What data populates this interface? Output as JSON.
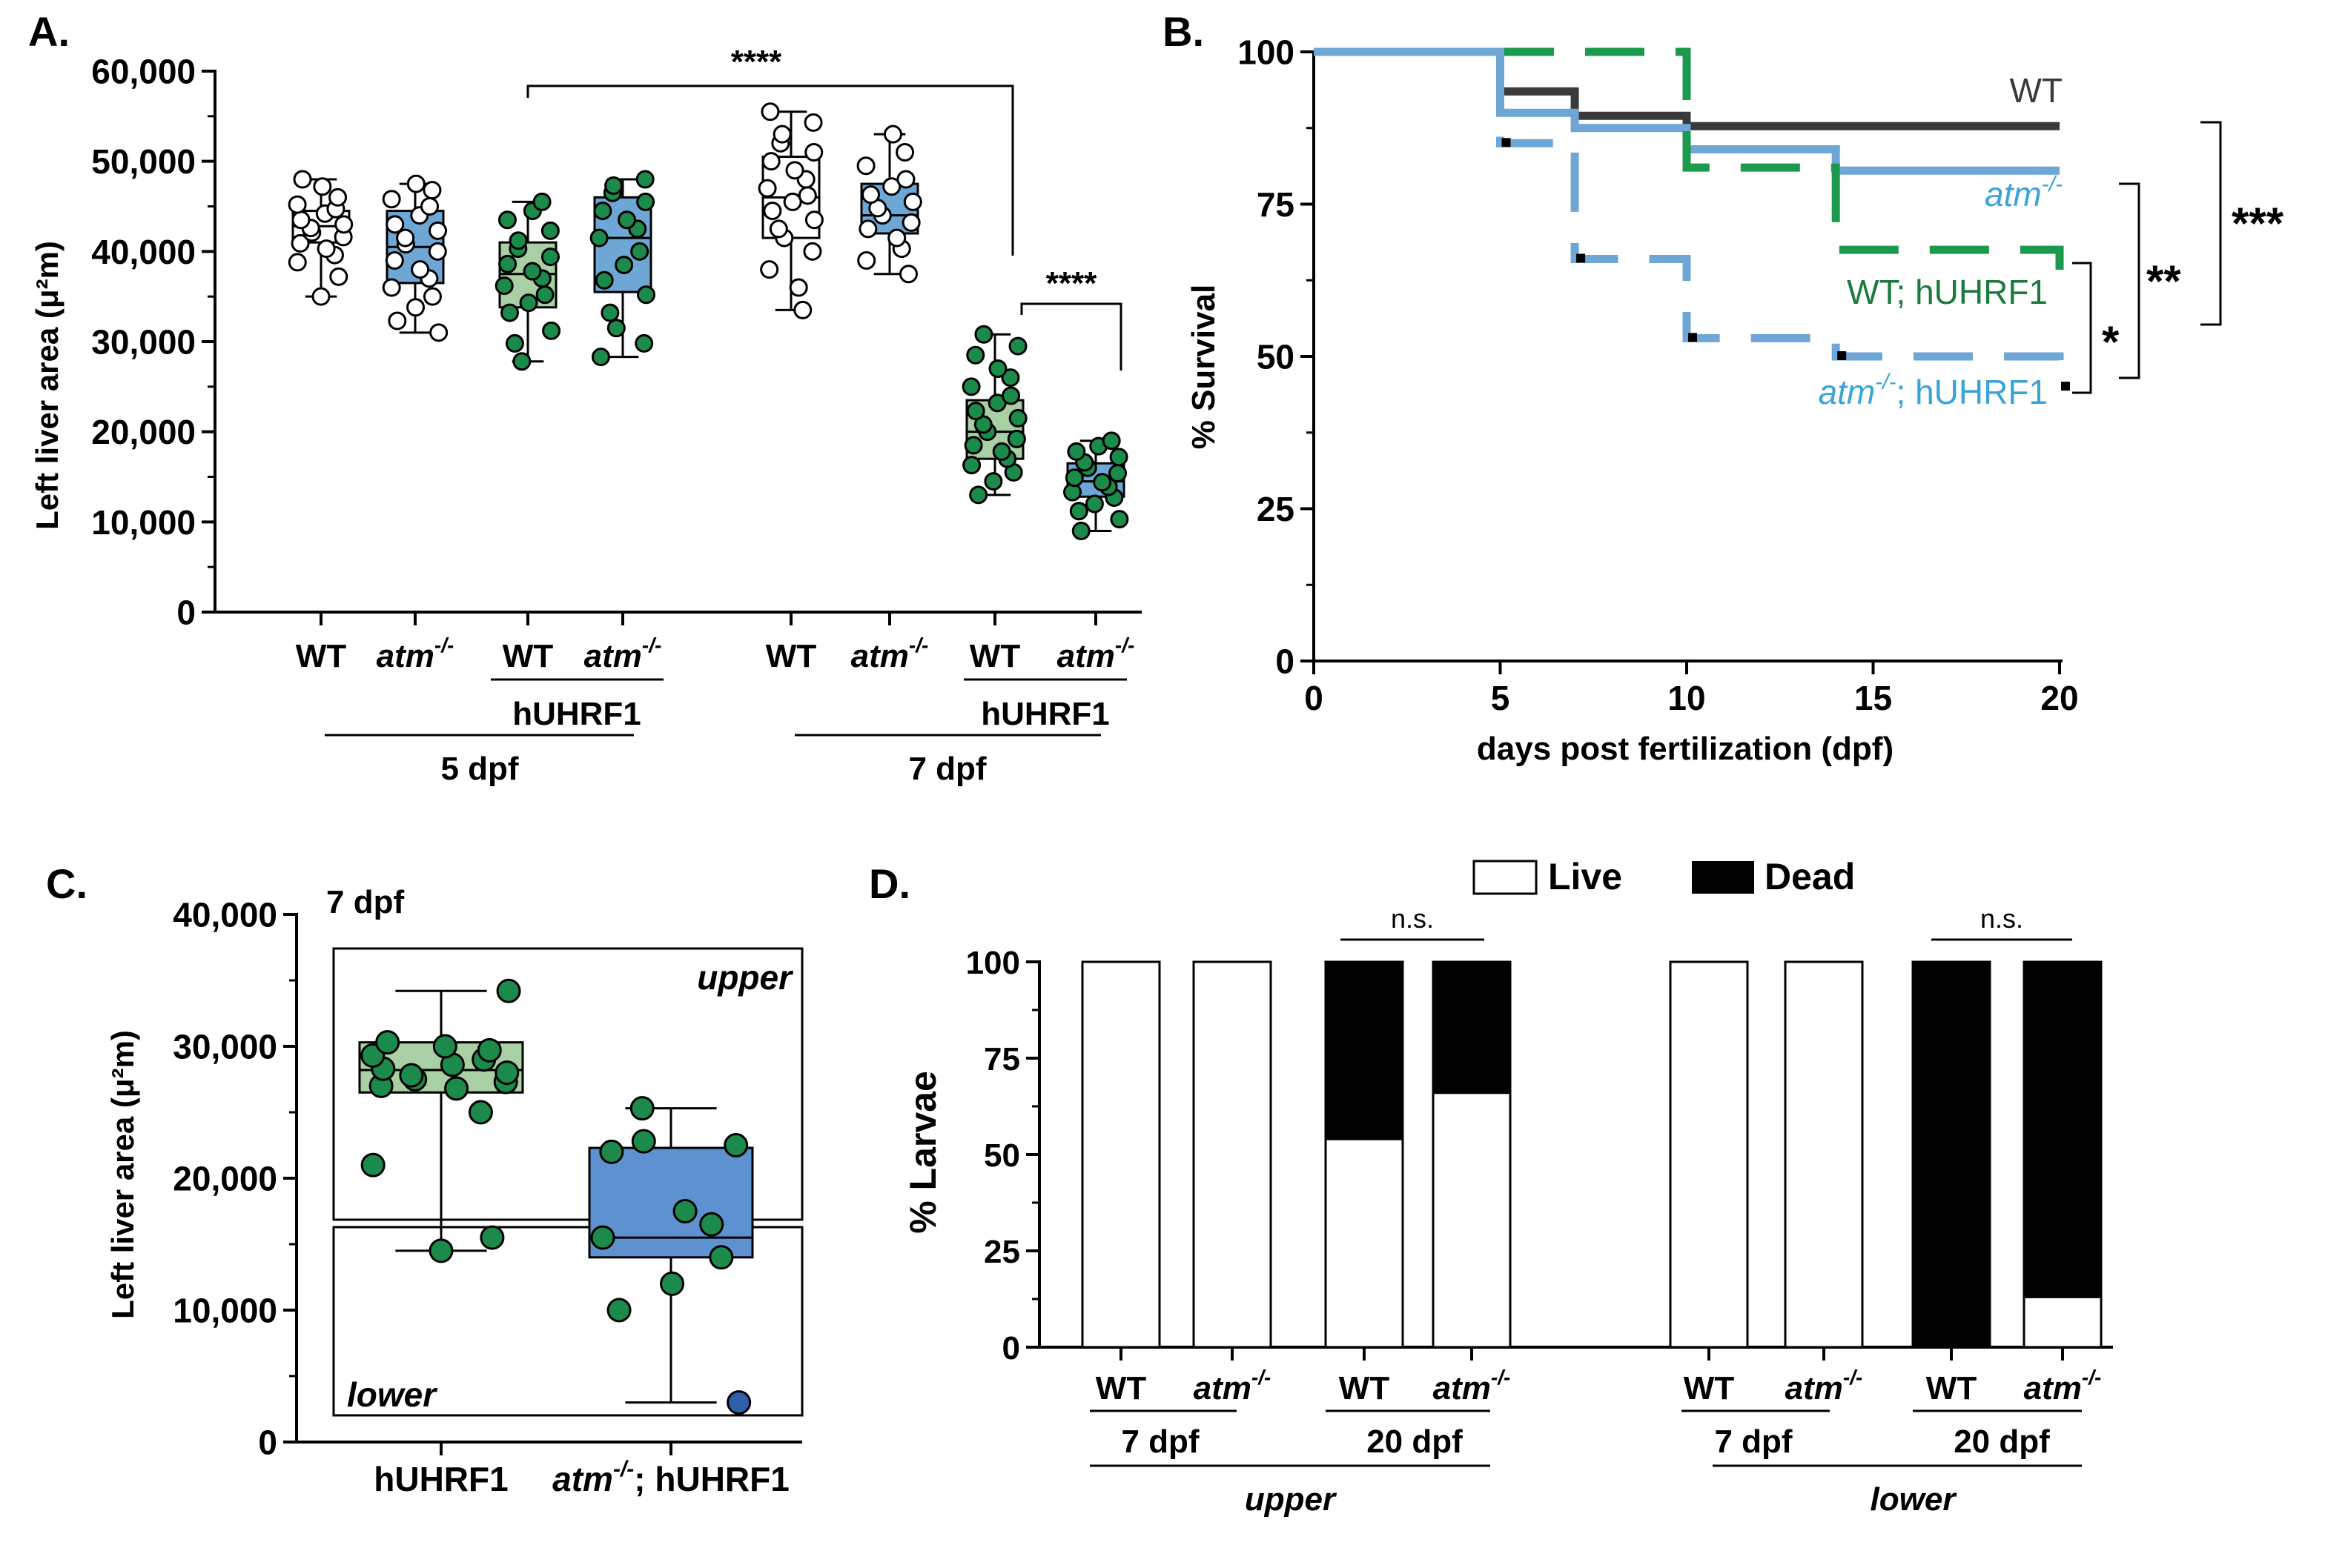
{
  "panels": {
    "a": "A.",
    "b": "B.",
    "c": "C.",
    "d": "D."
  },
  "colors": {
    "green": "#1b8a4a",
    "green_light": "#a9cfa4",
    "blue": "#6ea7d6",
    "blue_fill": "#5e91cf",
    "dark": "#3a3a3a",
    "blue_text": "#3aa3d8",
    "green_text": "#1b7a3e"
  },
  "chart_data": [
    {
      "panel": "A",
      "type": "box",
      "ylabel": "Left liver area (μ²m)",
      "ylim": [
        0,
        60000
      ],
      "ytick_labels": [
        "0",
        "10,000",
        "20,000",
        "30,000",
        "40,000",
        "50,000",
        "60,000"
      ],
      "ytick_values": [
        0,
        10000,
        20000,
        30000,
        40000,
        50000,
        60000
      ],
      "category_labels": [
        "WT",
        "atm",
        "WT",
        "atm",
        "WT",
        "atm",
        "WT",
        "atm"
      ],
      "superscript": "-/-",
      "group_labels": [
        "hUHRF1",
        "5 dpf",
        "hUHRF1",
        "7 dpf"
      ],
      "sig_labels": [
        "****",
        "****"
      ],
      "boxes": [
        {
          "min": 35000,
          "q1": 41000,
          "median": 42800,
          "q3": 44500,
          "max": 48000,
          "points": [
            35000,
            37200,
            38800,
            39600,
            40300,
            40900,
            41600,
            42100,
            42600,
            43000,
            43500,
            44200,
            44700,
            45200,
            46000,
            47200,
            48000
          ]
        },
        {
          "min": 31000,
          "q1": 36500,
          "median": 40500,
          "q3": 44500,
          "max": 47500,
          "points": [
            31000,
            32300,
            33800,
            35000,
            36000,
            37000,
            38000,
            39000,
            40000,
            40800,
            41500,
            42300,
            43000,
            44000,
            45000,
            45800,
            46800,
            47500
          ]
        },
        {
          "min": 27800,
          "q1": 33800,
          "median": 37500,
          "q3": 41000,
          "max": 45500,
          "points": [
            27800,
            29800,
            31200,
            33200,
            34300,
            35200,
            36200,
            37000,
            37800,
            38600,
            39400,
            40300,
            41200,
            42300,
            43500,
            44500,
            45500
          ]
        },
        {
          "min": 28300,
          "q1": 35500,
          "median": 41500,
          "q3": 46000,
          "max": 48000,
          "points": [
            28300,
            29800,
            31500,
            33200,
            35200,
            36800,
            38500,
            40000,
            41500,
            42500,
            43500,
            44500,
            45500,
            46500,
            47300,
            48000
          ]
        },
        {
          "min": 33500,
          "q1": 41500,
          "median": 46000,
          "q3": 50500,
          "max": 55500,
          "points": [
            33500,
            36000,
            38000,
            40000,
            41500,
            42500,
            43500,
            44500,
            45500,
            46200,
            47000,
            48000,
            49000,
            50000,
            51000,
            52000,
            53000,
            54300,
            55500
          ]
        },
        {
          "min": 37500,
          "q1": 42000,
          "median": 44000,
          "q3": 47500,
          "max": 53000,
          "points": [
            37500,
            39000,
            40300,
            41500,
            42500,
            43200,
            44000,
            44800,
            45500,
            46300,
            47200,
            48000,
            49500,
            51000,
            53000
          ]
        },
        {
          "min": 13000,
          "q1": 17000,
          "median": 20000,
          "q3": 23500,
          "max": 30800,
          "points": [
            13000,
            14500,
            15500,
            16300,
            17000,
            17800,
            18500,
            19200,
            20000,
            20800,
            21500,
            22300,
            23200,
            24000,
            25000,
            26000,
            27000,
            28500,
            29500,
            30800
          ]
        },
        {
          "min": 9000,
          "q1": 12800,
          "median": 14500,
          "q3": 16500,
          "max": 19000,
          "points": [
            9000,
            10300,
            11200,
            12000,
            12700,
            13300,
            13900,
            14400,
            14900,
            15400,
            16000,
            16600,
            17200,
            17800,
            18400,
            19000
          ]
        }
      ]
    },
    {
      "panel": "B",
      "type": "line",
      "ylabel": "% Survival",
      "xlabel": "days post fertilization (dpf)",
      "xlim": [
        0,
        20
      ],
      "ylim": [
        0,
        100
      ],
      "xtick_labels": [
        "0",
        "5",
        "10",
        "15",
        "20"
      ],
      "xtick_values": [
        0,
        5,
        10,
        15,
        20
      ],
      "ytick_labels": [
        "0",
        "25",
        "50",
        "75",
        "100"
      ],
      "ytick_values": [
        0,
        25,
        50,
        75,
        100
      ],
      "series": [
        {
          "name": "WT",
          "x": [
            0,
            5,
            7,
            10,
            20
          ],
          "y": [
            100,
            93.5,
            89.5,
            87.8,
            87.8
          ]
        },
        {
          "name": "atm",
          "x": [
            0,
            5,
            7,
            10,
            14,
            20
          ],
          "y": [
            100,
            90,
            87.5,
            84,
            80.5,
            80.5
          ]
        },
        {
          "name": "WT; hUHRF1",
          "x": [
            0,
            5,
            10,
            14,
            20
          ],
          "y": [
            100,
            100,
            81,
            67.5,
            60
          ]
        },
        {
          "name": "atm; hUHRF1",
          "x": [
            0,
            5,
            7,
            10,
            14,
            20
          ],
          "y": [
            100,
            85,
            66,
            53,
            50,
            45
          ]
        }
      ],
      "legend_labels": [
        "WT",
        "atm",
        "WT; hUHRF1",
        "atm",
        "; hUHRF1"
      ],
      "superscript": "-/-",
      "sig_labels": [
        "***",
        "**",
        "*"
      ]
    },
    {
      "panel": "C",
      "type": "box",
      "title": "7 dpf",
      "ylabel": "Left liver area (μ²m)",
      "ylim": [
        0,
        40000
      ],
      "ytick_labels": [
        "0",
        "10,000",
        "20,000",
        "30,000",
        "40,000"
      ],
      "ytick_values": [
        0,
        10000,
        20000,
        30000,
        40000
      ],
      "category_labels": [
        "hUHRF1",
        "atm",
        "; hUHRF1"
      ],
      "superscript": "-/-",
      "region_labels": [
        "upper",
        "lower"
      ],
      "boxes": [
        {
          "min": 14500,
          "q1": 26500,
          "median": 28200,
          "q3": 30300,
          "max": 34200,
          "points": [
            14500,
            15500,
            21000,
            25000,
            26800,
            27000,
            27300,
            27500,
            27800,
            28000,
            28300,
            28600,
            29000,
            29300,
            29700,
            30000,
            30300,
            34200
          ]
        },
        {
          "min": 3000,
          "q1": 14000,
          "median": 15500,
          "q3": 22300,
          "max": 25300,
          "points": [
            3000,
            10000,
            12000,
            14000,
            15500,
            16500,
            17500,
            22000,
            22500,
            22800,
            25300
          ]
        }
      ]
    },
    {
      "panel": "D",
      "type": "bar",
      "ylabel": "% Larvae",
      "ylim": [
        0,
        100
      ],
      "ytick_labels": [
        "0",
        "25",
        "50",
        "75",
        "100"
      ],
      "ytick_values": [
        0,
        25,
        50,
        75,
        100
      ],
      "legend": [
        "Live",
        "Dead"
      ],
      "category_labels": [
        "WT",
        "atm",
        "WT",
        "atm",
        "WT",
        "atm",
        "WT",
        "atm"
      ],
      "superscript": "-/-",
      "group_labels": [
        "7 dpf",
        "20 dpf",
        "upper",
        "7 dpf",
        "20 dpf",
        "lower"
      ],
      "sig_labels": [
        "n.s.",
        "n.s."
      ],
      "series": [
        {
          "name": "Live",
          "values": [
            100,
            100,
            54,
            66,
            100,
            100,
            0,
            13
          ]
        },
        {
          "name": "Dead",
          "values": [
            0,
            0,
            46,
            34,
            0,
            0,
            100,
            87
          ]
        }
      ]
    }
  ]
}
